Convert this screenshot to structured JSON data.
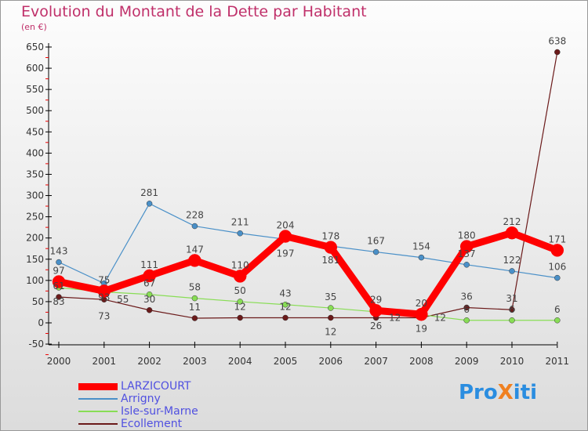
{
  "chart_data": {
    "type": "line",
    "title": "Evolution du Montant de la Dette par Habitant",
    "subtitle": "(en €)",
    "x": [
      "2000",
      "2001",
      "2002",
      "2003",
      "2004",
      "2005",
      "2006",
      "2007",
      "2008",
      "2009",
      "2010",
      "2011"
    ],
    "ylim": [
      -50,
      650
    ],
    "yticks": [
      -50,
      0,
      50,
      100,
      150,
      200,
      250,
      300,
      350,
      400,
      450,
      500,
      550,
      600,
      650
    ],
    "series": [
      {
        "name": "LARZICOURT",
        "color": "#ff0000",
        "width": 9,
        "values": [
          97,
          75,
          111,
          147,
          110,
          204,
          178,
          29,
          20,
          180,
          212,
          171
        ]
      },
      {
        "name": "Arrigny",
        "color": "#4a90c8",
        "width": 1.2,
        "values": [
          143,
          93,
          281,
          228,
          211,
          197,
          181,
          167,
          154,
          137,
          122,
          106
        ]
      },
      {
        "name": "Isle-sur-Marne",
        "color": "#88dd55",
        "width": 1.2,
        "values": [
          83,
          73,
          67,
          58,
          50,
          43,
          35,
          26,
          19,
          6,
          6,
          6
        ]
      },
      {
        "name": "Ecollement",
        "color": "#6b1a1a",
        "width": 1.2,
        "values": [
          61,
          55,
          30,
          11,
          12,
          12,
          12,
          12,
          12,
          36,
          31,
          638
        ]
      }
    ]
  },
  "logo": "ProXiti"
}
